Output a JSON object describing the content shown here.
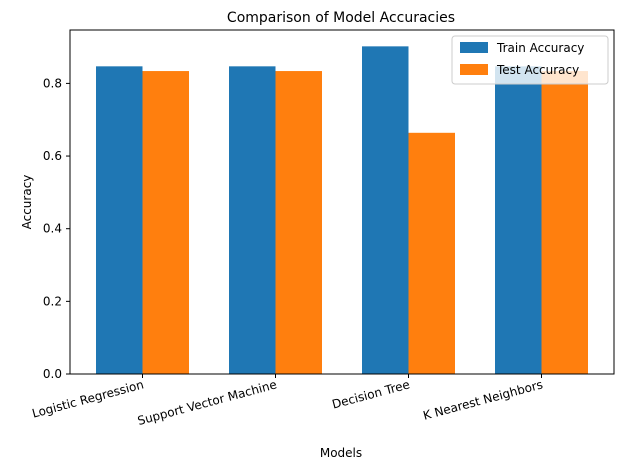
{
  "chart_data": {
    "type": "bar",
    "title": "Comparison of Model Accuracies",
    "xlabel": "Models",
    "ylabel": "Accuracy",
    "categories": [
      "Logistic Regression",
      "Support Vector Machine",
      "Decision Tree",
      "K Nearest Neighbors"
    ],
    "series": [
      {
        "name": "Train Accuracy",
        "color": "#1f77b4",
        "values": [
          0.847,
          0.847,
          0.902,
          0.847
        ]
      },
      {
        "name": "Test Accuracy",
        "color": "#ff7f0e",
        "values": [
          0.834,
          0.834,
          0.664,
          0.834
        ]
      }
    ],
    "ylim": [
      0,
      0.947
    ],
    "yticks": [
      0.0,
      0.2,
      0.4,
      0.6,
      0.8
    ],
    "ytick_labels": [
      "0.0",
      "0.2",
      "0.4",
      "0.6",
      "0.8"
    ],
    "legend_position": "top-right",
    "grid": false
  }
}
